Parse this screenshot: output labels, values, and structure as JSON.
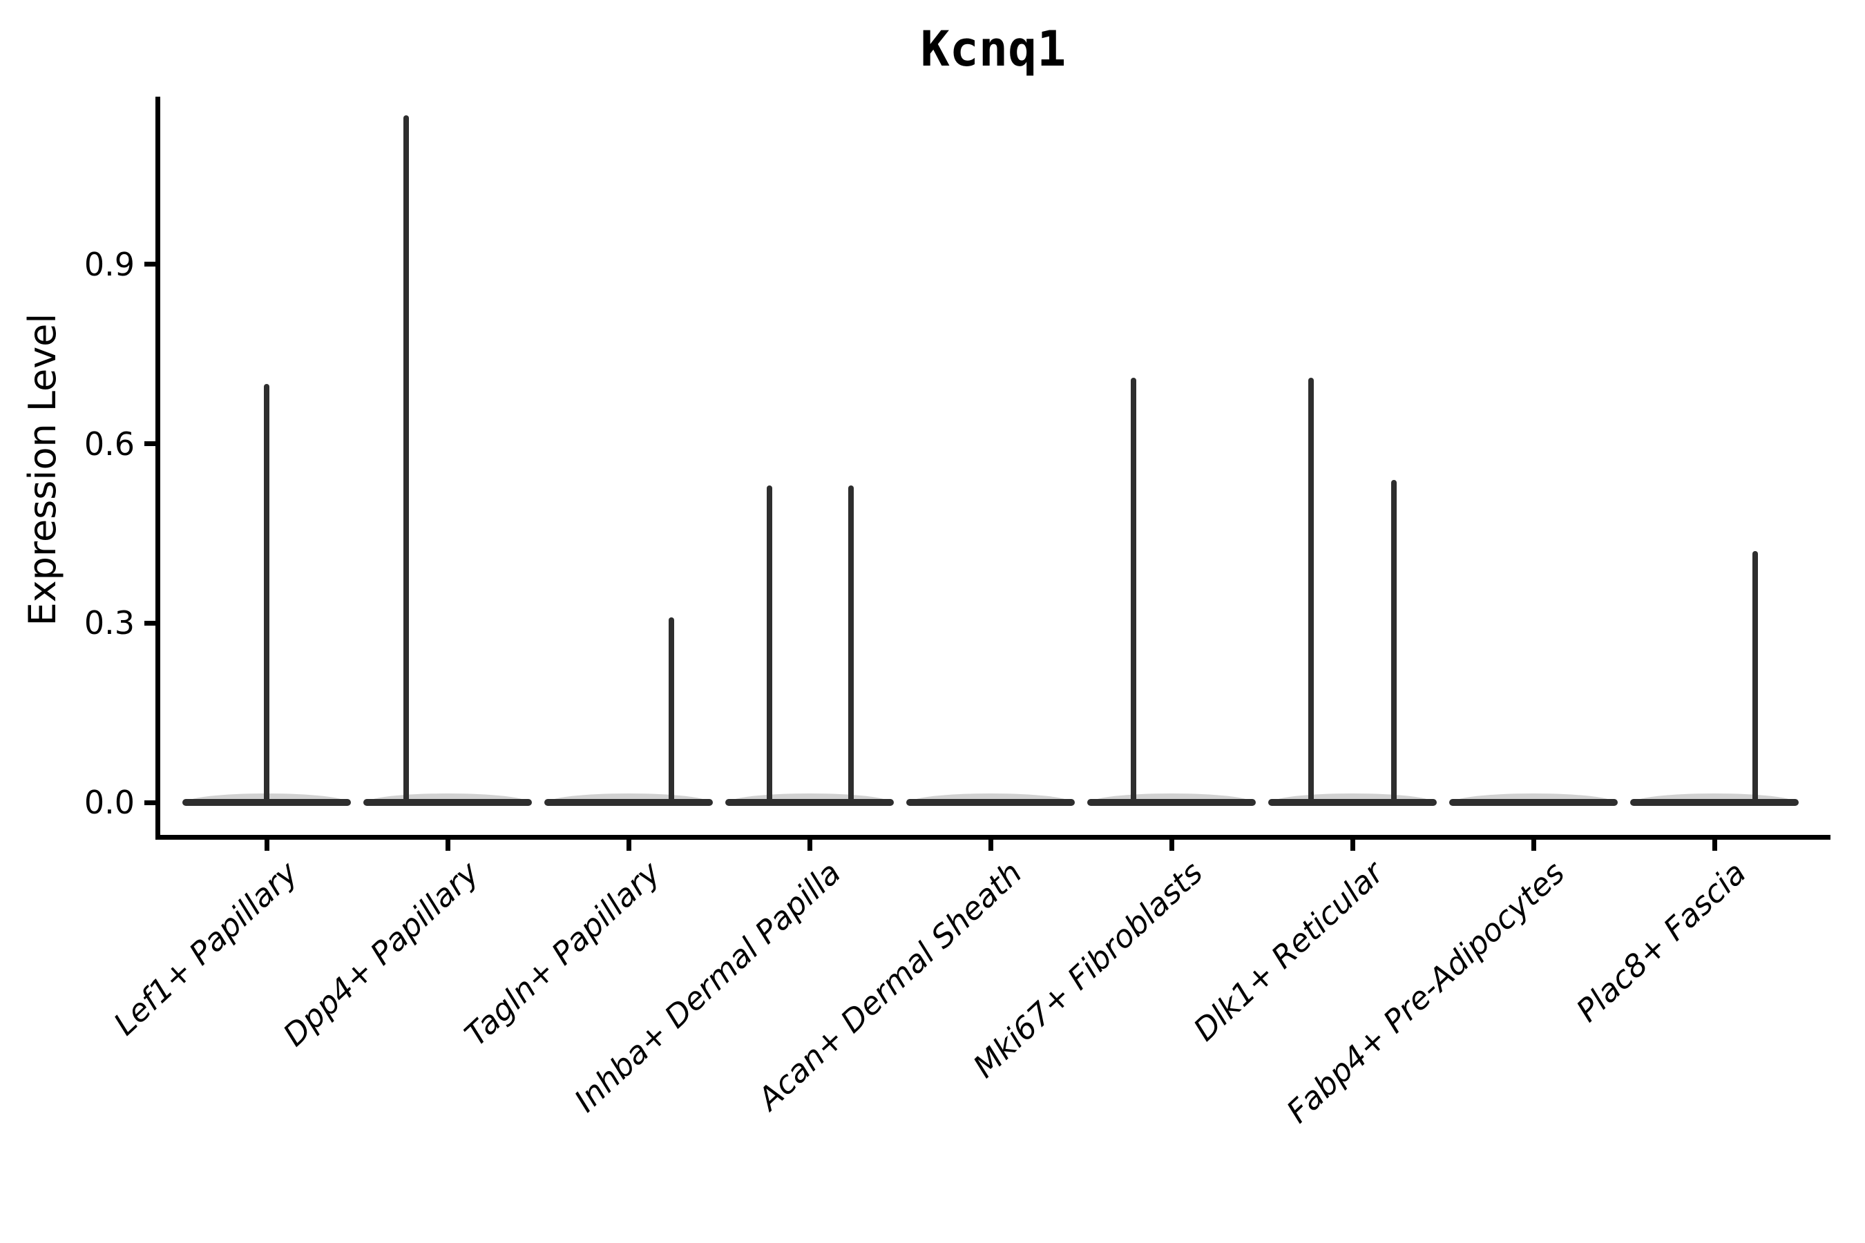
{
  "chart_data": {
    "type": "violin",
    "title": "Kcnq1",
    "xlabel": "",
    "ylabel": "Expression Level",
    "grid": false,
    "legend": false,
    "ylim": [
      0,
      1.18
    ],
    "yticks": [
      {
        "label": "0.0",
        "value": 0.0
      },
      {
        "label": "0.3",
        "value": 0.3
      },
      {
        "label": "0.6",
        "value": 0.6
      },
      {
        "label": "0.9",
        "value": 0.9
      }
    ],
    "categories": [
      "Lef1+ Papillary",
      "Dpp4+ Papillary",
      "Tagln+ Papillary",
      "Inhba+ Dermal Papilla",
      "Acan+ Dermal Sheath",
      "Mki67+ Fibroblasts",
      "Dlk1+ Reticular",
      "Fabp4+ Pre-Adipocytes",
      "Plac8+ Fascia"
    ],
    "violins": [
      {
        "category": "Lef1+ Papillary",
        "base_value": 0.0,
        "spikes": [
          {
            "value": 0.7,
            "offset_frac": 0.0
          }
        ]
      },
      {
        "category": "Dpp4+ Papillary",
        "base_value": 0.0,
        "spikes": [
          {
            "value": 1.15,
            "offset_frac": -0.23
          }
        ]
      },
      {
        "category": "Tagln+ Papillary",
        "base_value": 0.0,
        "spikes": [
          {
            "value": 0.31,
            "offset_frac": 0.235
          }
        ]
      },
      {
        "category": "Inhba+ Dermal Papilla",
        "base_value": 0.0,
        "spikes": [
          {
            "value": 0.53,
            "offset_frac": -0.22
          },
          {
            "value": 0.53,
            "offset_frac": 0.23
          }
        ]
      },
      {
        "category": "Acan+ Dermal Sheath",
        "base_value": 0.0,
        "spikes": []
      },
      {
        "category": "Mki67+ Fibroblasts",
        "base_value": 0.0,
        "spikes": [
          {
            "value": 0.71,
            "offset_frac": -0.21
          }
        ]
      },
      {
        "category": "Dlk1+ Reticular",
        "base_value": 0.0,
        "spikes": [
          {
            "value": 0.71,
            "offset_frac": -0.23
          },
          {
            "value": 0.54,
            "offset_frac": 0.23
          }
        ]
      },
      {
        "category": "Fabp4+ Pre-Adipocytes",
        "base_value": 0.0,
        "spikes": []
      },
      {
        "category": "Plac8+ Fascia",
        "base_value": 0.0,
        "spikes": [
          {
            "value": 0.42,
            "offset_frac": 0.225
          }
        ]
      }
    ],
    "colors": {
      "violin": "#2e2e2e",
      "axis": "#000000",
      "text": "#000000",
      "background": "#ffffff"
    }
  }
}
